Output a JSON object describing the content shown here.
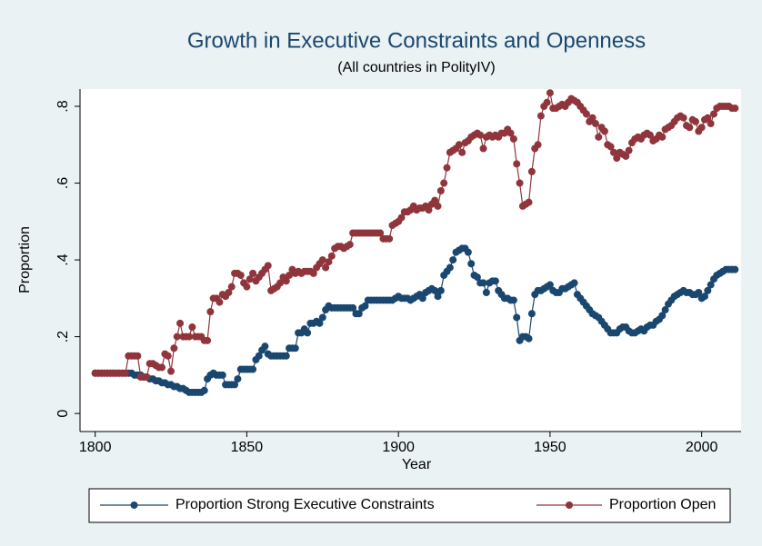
{
  "chart_data": {
    "type": "line",
    "title": "Growth in Executive Constraints and Openness",
    "subtitle": "(All countries in PolityIV)",
    "x_label": "Year",
    "y_label": "Proportion",
    "xlim": [
      1795,
      2013
    ],
    "xticks": [
      1800,
      1850,
      1900,
      1950,
      2000
    ],
    "ylim": [
      -0.047,
      0.845
    ],
    "yticks": [
      0,
      {
        "value": 0.2,
        "label": ".2"
      },
      {
        "value": 0.4,
        "label": ".4"
      },
      {
        "value": 0.6,
        "label": ".6"
      },
      {
        "value": 0.8,
        "label": ".8"
      }
    ],
    "legend": "bottom",
    "x": [
      1800,
      1801,
      1802,
      1803,
      1804,
      1805,
      1806,
      1807,
      1808,
      1809,
      1810,
      1811,
      1812,
      1813,
      1814,
      1815,
      1816,
      1817,
      1818,
      1819,
      1820,
      1821,
      1822,
      1823,
      1824,
      1825,
      1826,
      1827,
      1828,
      1829,
      1830,
      1831,
      1832,
      1833,
      1834,
      1835,
      1836,
      1837,
      1838,
      1839,
      1840,
      1841,
      1842,
      1843,
      1844,
      1845,
      1846,
      1847,
      1848,
      1849,
      1850,
      1851,
      1852,
      1853,
      1854,
      1855,
      1856,
      1857,
      1858,
      1859,
      1860,
      1861,
      1862,
      1863,
      1864,
      1865,
      1866,
      1867,
      1868,
      1869,
      1870,
      1871,
      1872,
      1873,
      1874,
      1875,
      1876,
      1877,
      1878,
      1879,
      1880,
      1881,
      1882,
      1883,
      1884,
      1885,
      1886,
      1887,
      1888,
      1889,
      1890,
      1891,
      1892,
      1893,
      1894,
      1895,
      1896,
      1897,
      1898,
      1899,
      1900,
      1901,
      1902,
      1903,
      1904,
      1905,
      1906,
      1907,
      1908,
      1909,
      1910,
      1911,
      1912,
      1913,
      1914,
      1915,
      1916,
      1917,
      1918,
      1919,
      1920,
      1921,
      1922,
      1923,
      1924,
      1925,
      1926,
      1927,
      1928,
      1929,
      1930,
      1931,
      1932,
      1933,
      1934,
      1935,
      1936,
      1937,
      1938,
      1939,
      1940,
      1941,
      1942,
      1943,
      1944,
      1945,
      1946,
      1947,
      1948,
      1949,
      1950,
      1951,
      1952,
      1953,
      1954,
      1955,
      1956,
      1957,
      1958,
      1959,
      1960,
      1961,
      1962,
      1963,
      1964,
      1965,
      1966,
      1967,
      1968,
      1969,
      1970,
      1971,
      1972,
      1973,
      1974,
      1975,
      1976,
      1977,
      1978,
      1979,
      1980,
      1981,
      1982,
      1983,
      1984,
      1985,
      1986,
      1987,
      1988,
      1989,
      1990,
      1991,
      1992,
      1993,
      1994,
      1995,
      1996,
      1997,
      1998,
      1999,
      2000,
      2001,
      2002,
      2003,
      2004,
      2005,
      2006,
      2007,
      2008,
      2009,
      2010,
      2011
    ],
    "series": [
      {
        "name": "Proportion Strong Executive Constraints",
        "color": "#1a476f",
        "values": [
          0.105,
          0.105,
          0.105,
          0.105,
          0.105,
          0.105,
          0.105,
          0.105,
          0.105,
          0.105,
          0.105,
          0.105,
          0.105,
          0.1,
          0.1,
          0.1,
          0.095,
          0.095,
          0.09,
          0.09,
          0.085,
          0.085,
          0.08,
          0.08,
          0.075,
          0.075,
          0.07,
          0.07,
          0.065,
          0.065,
          0.06,
          0.055,
          0.055,
          0.055,
          0.055,
          0.055,
          0.06,
          0.09,
          0.1,
          0.105,
          0.1,
          0.1,
          0.1,
          0.075,
          0.075,
          0.075,
          0.075,
          0.09,
          0.115,
          0.115,
          0.115,
          0.115,
          0.115,
          0.14,
          0.15,
          0.165,
          0.175,
          0.155,
          0.15,
          0.15,
          0.15,
          0.15,
          0.15,
          0.15,
          0.17,
          0.17,
          0.17,
          0.21,
          0.21,
          0.22,
          0.21,
          0.235,
          0.235,
          0.24,
          0.235,
          0.25,
          0.27,
          0.28,
          0.275,
          0.275,
          0.275,
          0.275,
          0.275,
          0.275,
          0.275,
          0.275,
          0.26,
          0.26,
          0.275,
          0.28,
          0.295,
          0.295,
          0.295,
          0.295,
          0.295,
          0.295,
          0.295,
          0.295,
          0.295,
          0.3,
          0.305,
          0.3,
          0.3,
          0.3,
          0.295,
          0.3,
          0.305,
          0.31,
          0.3,
          0.315,
          0.32,
          0.325,
          0.32,
          0.305,
          0.32,
          0.36,
          0.37,
          0.38,
          0.4,
          0.42,
          0.425,
          0.43,
          0.43,
          0.42,
          0.39,
          0.36,
          0.355,
          0.34,
          0.34,
          0.315,
          0.34,
          0.345,
          0.345,
          0.32,
          0.31,
          0.3,
          0.3,
          0.295,
          0.295,
          0.25,
          0.19,
          0.2,
          0.2,
          0.195,
          0.26,
          0.31,
          0.32,
          0.32,
          0.325,
          0.33,
          0.335,
          0.32,
          0.315,
          0.315,
          0.325,
          0.325,
          0.33,
          0.335,
          0.34,
          0.31,
          0.3,
          0.29,
          0.28,
          0.27,
          0.26,
          0.255,
          0.25,
          0.24,
          0.23,
          0.22,
          0.21,
          0.21,
          0.21,
          0.22,
          0.225,
          0.225,
          0.215,
          0.21,
          0.21,
          0.215,
          0.22,
          0.215,
          0.225,
          0.23,
          0.23,
          0.24,
          0.245,
          0.255,
          0.27,
          0.285,
          0.295,
          0.305,
          0.31,
          0.315,
          0.32,
          0.315,
          0.315,
          0.31,
          0.31,
          0.315,
          0.3,
          0.305,
          0.32,
          0.335,
          0.35,
          0.36,
          0.365,
          0.37,
          0.375,
          0.375,
          0.375,
          0.375
        ]
      },
      {
        "name": "Proportion Open",
        "color": "#90353b",
        "values": [
          0.105,
          0.105,
          0.105,
          0.105,
          0.105,
          0.105,
          0.105,
          0.105,
          0.105,
          0.105,
          0.105,
          0.15,
          0.15,
          0.15,
          0.15,
          0.095,
          0.095,
          0.095,
          0.13,
          0.13,
          0.125,
          0.12,
          0.12,
          0.155,
          0.15,
          0.11,
          0.17,
          0.2,
          0.235,
          0.2,
          0.2,
          0.2,
          0.225,
          0.2,
          0.2,
          0.2,
          0.19,
          0.19,
          0.265,
          0.3,
          0.3,
          0.29,
          0.31,
          0.305,
          0.315,
          0.33,
          0.365,
          0.365,
          0.36,
          0.34,
          0.33,
          0.35,
          0.365,
          0.345,
          0.355,
          0.365,
          0.375,
          0.385,
          0.32,
          0.325,
          0.33,
          0.34,
          0.355,
          0.345,
          0.36,
          0.375,
          0.365,
          0.37,
          0.365,
          0.37,
          0.37,
          0.37,
          0.365,
          0.38,
          0.39,
          0.4,
          0.38,
          0.395,
          0.41,
          0.43,
          0.435,
          0.435,
          0.43,
          0.435,
          0.44,
          0.47,
          0.47,
          0.47,
          0.47,
          0.47,
          0.47,
          0.47,
          0.47,
          0.47,
          0.47,
          0.455,
          0.455,
          0.455,
          0.49,
          0.495,
          0.5,
          0.51,
          0.525,
          0.525,
          0.53,
          0.54,
          0.53,
          0.535,
          0.535,
          0.54,
          0.53,
          0.545,
          0.555,
          0.54,
          0.58,
          0.6,
          0.64,
          0.68,
          0.685,
          0.69,
          0.7,
          0.68,
          0.705,
          0.71,
          0.72,
          0.725,
          0.73,
          0.725,
          0.69,
          0.72,
          0.725,
          0.72,
          0.725,
          0.72,
          0.73,
          0.73,
          0.74,
          0.73,
          0.715,
          0.65,
          0.6,
          0.54,
          0.545,
          0.55,
          0.63,
          0.69,
          0.7,
          0.775,
          0.8,
          0.81,
          0.835,
          0.795,
          0.795,
          0.8,
          0.805,
          0.8,
          0.81,
          0.82,
          0.815,
          0.81,
          0.8,
          0.79,
          0.78,
          0.76,
          0.77,
          0.755,
          0.72,
          0.745,
          0.735,
          0.7,
          0.695,
          0.68,
          0.665,
          0.68,
          0.675,
          0.67,
          0.685,
          0.705,
          0.715,
          0.72,
          0.715,
          0.725,
          0.73,
          0.725,
          0.71,
          0.715,
          0.725,
          0.72,
          0.74,
          0.745,
          0.75,
          0.76,
          0.77,
          0.775,
          0.77,
          0.75,
          0.745,
          0.765,
          0.76,
          0.735,
          0.745,
          0.765,
          0.77,
          0.755,
          0.78,
          0.795,
          0.8,
          0.8,
          0.8,
          0.8,
          0.795,
          0.795
        ]
      }
    ]
  }
}
